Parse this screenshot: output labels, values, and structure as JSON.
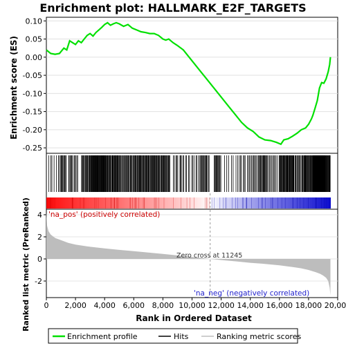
{
  "chart_data": {
    "type": "line",
    "title": "Enrichment plot: HALLMARK_E2F_TARGETS",
    "xlabel": "Rank in Ordered Dataset",
    "es_ylabel": "Enrichment score (ES)",
    "metric_ylabel": "Ranked list metric (PreRanked)",
    "xlim": [
      0,
      20000
    ],
    "x_ticks": [
      0,
      2000,
      4000,
      6000,
      8000,
      10000,
      12000,
      14000,
      16000,
      18000,
      20000
    ],
    "x_tick_labels": [
      "0",
      "2,000",
      "4,000",
      "6,000",
      "8,000",
      "10,000",
      "12,000",
      "14,000",
      "16,000",
      "18,000",
      "20,000"
    ],
    "es_ylim": [
      -0.265,
      0.11
    ],
    "es_ticks": [
      0.1,
      0.05,
      0.0,
      -0.05,
      -0.1,
      -0.15,
      -0.2,
      -0.25
    ],
    "es_tick_labels": [
      "0.10",
      "0.05",
      "0.00",
      "-0.05",
      "-0.10",
      "-0.15",
      "-0.20",
      "-0.25"
    ],
    "metric_ylim": [
      -3.5,
      4.5
    ],
    "metric_ticks": [
      4,
      2,
      0,
      -2
    ],
    "metric_tick_labels": [
      "4",
      "2",
      "0",
      "-2"
    ],
    "n_genes": 19500,
    "zero_cross_rank": 11245,
    "zero_cross_label": "Zero cross at 11245",
    "pos_label": "'na_pos' (positively correlated)",
    "neg_label": "'na_neg' (negatively correlated)",
    "legend": [
      "Enrichment profile",
      "Hits",
      "Ranking metric scores"
    ],
    "colors": {
      "es_line": "#00e000",
      "hits": "#000000",
      "metric_fill": "#bdbdbd",
      "pos_color": "#ff0000",
      "neg_color": "#0000cc",
      "pos_text": "#cc0000",
      "neg_text": "#2222cc"
    },
    "es_series": {
      "name": "Enrichment profile",
      "x": [
        0,
        300,
        600,
        900,
        1200,
        1400,
        1600,
        1800,
        2000,
        2200,
        2400,
        2600,
        2800,
        3000,
        3200,
        3400,
        3600,
        3800,
        4000,
        4200,
        4400,
        4600,
        4800,
        5000,
        5300,
        5600,
        5900,
        6200,
        6500,
        6800,
        7100,
        7400,
        7700,
        8000,
        8200,
        8400,
        8700,
        9000,
        9400,
        9800,
        10200,
        10600,
        11000,
        11400,
        11800,
        12200,
        12600,
        13000,
        13400,
        13800,
        14200,
        14600,
        15000,
        15400,
        15800,
        16100,
        16300,
        16600,
        16900,
        17200,
        17500,
        17800,
        18000,
        18200,
        18300,
        18450,
        18600,
        18750,
        18900,
        19050,
        19200,
        19350,
        19450,
        19500
      ],
      "y": [
        0.02,
        0.01,
        0.008,
        0.01,
        0.025,
        0.02,
        0.045,
        0.04,
        0.035,
        0.045,
        0.04,
        0.05,
        0.06,
        0.065,
        0.058,
        0.068,
        0.075,
        0.082,
        0.09,
        0.095,
        0.088,
        0.092,
        0.095,
        0.092,
        0.085,
        0.09,
        0.08,
        0.075,
        0.07,
        0.068,
        0.065,
        0.065,
        0.06,
        0.05,
        0.047,
        0.05,
        0.04,
        0.032,
        0.02,
        0.0,
        -0.02,
        -0.04,
        -0.06,
        -0.08,
        -0.1,
        -0.12,
        -0.14,
        -0.16,
        -0.18,
        -0.195,
        -0.205,
        -0.22,
        -0.228,
        -0.23,
        -0.235,
        -0.24,
        -0.228,
        -0.225,
        -0.218,
        -0.21,
        -0.2,
        -0.195,
        -0.185,
        -0.17,
        -0.16,
        -0.14,
        -0.12,
        -0.085,
        -0.07,
        -0.072,
        -0.06,
        -0.04,
        -0.02,
        0.0
      ]
    },
    "metric_series": {
      "name": "Ranking metric scores",
      "x": [
        0,
        50,
        150,
        300,
        600,
        1000,
        1500,
        2000,
        3000,
        4000,
        5000,
        6000,
        7000,
        8000,
        9000,
        10000,
        11245,
        12000,
        13000,
        14000,
        15000,
        16000,
        17000,
        17500,
        18000,
        18500,
        18800,
        19000,
        19200,
        19350,
        19450,
        19500
      ],
      "y": [
        4.2,
        3.0,
        2.5,
        2.2,
        1.9,
        1.7,
        1.45,
        1.3,
        1.1,
        0.95,
        0.82,
        0.7,
        0.58,
        0.45,
        0.32,
        0.18,
        0.0,
        -0.1,
        -0.22,
        -0.35,
        -0.45,
        -0.58,
        -0.75,
        -0.85,
        -1.0,
        -1.2,
        -1.35,
        -1.5,
        -1.7,
        -2.0,
        -2.6,
        -3.3
      ]
    },
    "hits_dense_ranges": [
      [
        100,
        900,
        6
      ],
      [
        900,
        1400,
        10
      ],
      [
        1500,
        2200,
        12
      ],
      [
        2400,
        3000,
        14
      ],
      [
        3000,
        4000,
        40
      ],
      [
        4000,
        5000,
        30
      ],
      [
        5000,
        6000,
        22
      ],
      [
        6000,
        7500,
        40
      ],
      [
        7500,
        8500,
        25
      ],
      [
        8700,
        9500,
        10
      ],
      [
        9500,
        10500,
        10
      ],
      [
        10500,
        11200,
        14
      ],
      [
        11500,
        12000,
        12
      ],
      [
        12200,
        12900,
        5
      ],
      [
        13000,
        13700,
        8
      ],
      [
        13800,
        14600,
        12
      ],
      [
        14600,
        15200,
        14
      ],
      [
        15200,
        16000,
        10
      ],
      [
        16000,
        17000,
        30
      ],
      [
        17000,
        17600,
        12
      ],
      [
        17600,
        18300,
        22
      ],
      [
        18300,
        19100,
        50
      ],
      [
        19100,
        19500,
        18
      ]
    ]
  }
}
